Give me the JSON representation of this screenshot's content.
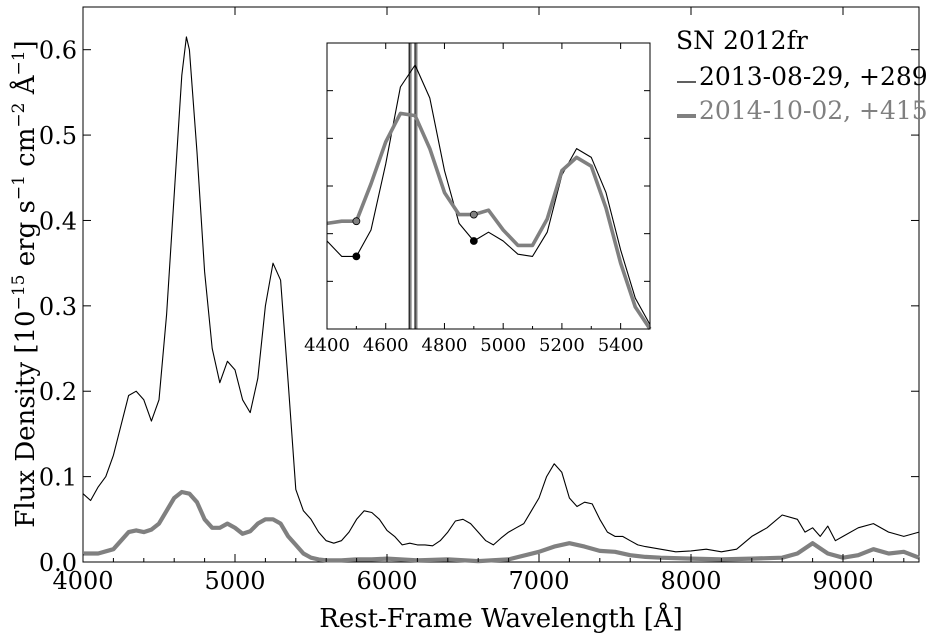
{
  "chart_data": [
    {
      "type": "line",
      "xlabel": "Rest-Frame Wavelength [Å]",
      "ylabel": "Flux Density [10^-15 erg s^-1 cm^-2 Å^-1]",
      "xlim": [
        4000,
        9500
      ],
      "ylim": [
        0,
        0.65
      ],
      "x_ticks": [
        4000,
        5000,
        6000,
        7000,
        8000,
        9000
      ],
      "y_ticks": [
        0.0,
        0.1,
        0.2,
        0.3,
        0.4,
        0.5,
        0.6
      ],
      "x_tick_labels": [
        "4000",
        "5000",
        "6000",
        "7000",
        "8000",
        "9000"
      ],
      "y_tick_labels": [
        "0.0",
        "0.1",
        "0.2",
        "0.3",
        "0.4",
        "0.5",
        "0.6"
      ],
      "grid": false,
      "legend": {
        "title": "SN 2012fr",
        "placement": "top-right",
        "entries": [
          "2013-08-29, +289",
          "2014-10-02, +415"
        ]
      },
      "series": [
        {
          "name": "2013-08-29, +289",
          "color": "#000000",
          "x": [
            4000,
            4050,
            4100,
            4150,
            4200,
            4250,
            4300,
            4350,
            4400,
            4450,
            4500,
            4550,
            4600,
            4650,
            4680,
            4700,
            4750,
            4800,
            4850,
            4900,
            4950,
            5000,
            5050,
            5100,
            5150,
            5200,
            5250,
            5300,
            5350,
            5400,
            5450,
            5500,
            5550,
            5600,
            5650,
            5700,
            5750,
            5800,
            5850,
            5900,
            5950,
            6000,
            6050,
            6100,
            6150,
            6200,
            6250,
            6300,
            6350,
            6400,
            6450,
            6500,
            6550,
            6600,
            6650,
            6700,
            6750,
            6800,
            6850,
            6900,
            6950,
            7000,
            7050,
            7100,
            7150,
            7200,
            7250,
            7300,
            7350,
            7400,
            7450,
            7500,
            7550,
            7600,
            7650,
            7700,
            7800,
            7900,
            8000,
            8100,
            8200,
            8300,
            8400,
            8500,
            8600,
            8700,
            8750,
            8800,
            8850,
            8900,
            8950,
            9000,
            9100,
            9200,
            9300,
            9400,
            9500
          ],
          "y": [
            0.08,
            0.072,
            0.088,
            0.1,
            0.125,
            0.16,
            0.195,
            0.2,
            0.19,
            0.165,
            0.19,
            0.29,
            0.43,
            0.57,
            0.615,
            0.6,
            0.48,
            0.34,
            0.25,
            0.21,
            0.235,
            0.225,
            0.19,
            0.175,
            0.215,
            0.3,
            0.35,
            0.33,
            0.21,
            0.085,
            0.06,
            0.05,
            0.035,
            0.025,
            0.022,
            0.025,
            0.035,
            0.05,
            0.06,
            0.058,
            0.05,
            0.037,
            0.03,
            0.02,
            0.022,
            0.02,
            0.02,
            0.019,
            0.025,
            0.035,
            0.048,
            0.05,
            0.045,
            0.035,
            0.025,
            0.02,
            0.028,
            0.035,
            0.04,
            0.045,
            0.06,
            0.075,
            0.1,
            0.115,
            0.105,
            0.075,
            0.065,
            0.07,
            0.068,
            0.05,
            0.035,
            0.03,
            0.03,
            0.025,
            0.02,
            0.018,
            0.015,
            0.012,
            0.013,
            0.015,
            0.012,
            0.015,
            0.03,
            0.04,
            0.055,
            0.05,
            0.035,
            0.04,
            0.03,
            0.042,
            0.025,
            0.03,
            0.04,
            0.045,
            0.035,
            0.03,
            0.035
          ]
        },
        {
          "name": "2014-10-02, +415",
          "color": "#808080",
          "x": [
            4000,
            4100,
            4200,
            4250,
            4300,
            4350,
            4400,
            4450,
            4500,
            4550,
            4600,
            4650,
            4700,
            4750,
            4800,
            4850,
            4900,
            4950,
            5000,
            5050,
            5100,
            5150,
            5200,
            5250,
            5300,
            5350,
            5400,
            5450,
            5500,
            5550,
            5600,
            5700,
            5800,
            5900,
            6000,
            6200,
            6400,
            6600,
            6800,
            7000,
            7100,
            7200,
            7300,
            7400,
            7500,
            7600,
            7700,
            7800,
            8000,
            8200,
            8400,
            8600,
            8700,
            8800,
            8900,
            9000,
            9100,
            9200,
            9300,
            9400,
            9500
          ],
          "y": [
            0.01,
            0.01,
            0.015,
            0.025,
            0.035,
            0.037,
            0.035,
            0.038,
            0.045,
            0.06,
            0.075,
            0.082,
            0.08,
            0.07,
            0.05,
            0.04,
            0.04,
            0.045,
            0.04,
            0.033,
            0.036,
            0.045,
            0.05,
            0.05,
            0.045,
            0.03,
            0.02,
            0.01,
            0.005,
            0.003,
            0.002,
            0.002,
            0.003,
            0.003,
            0.004,
            0.002,
            0.003,
            0.001,
            0.003,
            0.012,
            0.018,
            0.022,
            0.018,
            0.013,
            0.012,
            0.008,
            0.006,
            0.005,
            0.004,
            0.003,
            0.004,
            0.005,
            0.01,
            0.022,
            0.01,
            0.005,
            0.008,
            0.015,
            0.01,
            0.012,
            0.005
          ]
        }
      ]
    },
    {
      "type": "line",
      "xlim": [
        4400,
        5500
      ],
      "x_ticks": [
        4400,
        4600,
        4800,
        5000,
        5200,
        5400
      ],
      "x_tick_labels": [
        "4400",
        "4600",
        "4800",
        "5000",
        "5200",
        "5400"
      ],
      "y_ticks_labeled": false,
      "vertical_lines": [
        4680,
        4700
      ],
      "markers": [
        {
          "x": 4500,
          "series": "2013-08-29, +289",
          "color": "#000000"
        },
        {
          "x": 4900,
          "series": "2013-08-29, +289",
          "color": "#000000"
        },
        {
          "x": 4500,
          "series": "2014-10-02, +415",
          "color": "#808080"
        },
        {
          "x": 4900,
          "series": "2014-10-02, +415",
          "color": "#808080"
        }
      ],
      "series": [
        {
          "name": "2013-08-29, +289",
          "color": "#000000",
          "x": [
            4400,
            4450,
            4500,
            4550,
            4600,
            4650,
            4700,
            4750,
            4800,
            4850,
            4900,
            4950,
            5000,
            5050,
            5100,
            5150,
            5200,
            5250,
            5300,
            5350,
            5400,
            5450,
            5500
          ],
          "y": [
            0.4,
            0.33,
            0.33,
            0.45,
            0.75,
            1.1,
            1.2,
            1.05,
            0.72,
            0.48,
            0.4,
            0.44,
            0.4,
            0.34,
            0.33,
            0.44,
            0.7,
            0.82,
            0.78,
            0.62,
            0.36,
            0.14,
            0.02
          ]
        },
        {
          "name": "2014-10-02, +415",
          "color": "#808080",
          "x": [
            4400,
            4450,
            4500,
            4550,
            4600,
            4650,
            4700,
            4750,
            4800,
            4850,
            4900,
            4950,
            5000,
            5050,
            5100,
            5150,
            5200,
            5250,
            5300,
            5350,
            5400,
            5450,
            5500
          ],
          "y": [
            0.48,
            0.49,
            0.49,
            0.66,
            0.85,
            0.98,
            0.97,
            0.82,
            0.62,
            0.52,
            0.52,
            0.54,
            0.45,
            0.38,
            0.38,
            0.5,
            0.72,
            0.78,
            0.74,
            0.55,
            0.3,
            0.1,
            0.0
          ]
        }
      ]
    }
  ]
}
